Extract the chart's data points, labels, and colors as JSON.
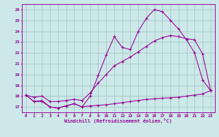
{
  "x": [
    0,
    1,
    2,
    3,
    4,
    5,
    6,
    7,
    8,
    9,
    10,
    11,
    12,
    13,
    14,
    15,
    16,
    17,
    18,
    19,
    20,
    21,
    22,
    23
  ],
  "line1": [
    18.1,
    17.5,
    17.6,
    17.0,
    16.9,
    17.1,
    17.3,
    17.0,
    18.0,
    19.9,
    21.8,
    23.5,
    22.5,
    22.3,
    24.0,
    25.2,
    26.0,
    25.8,
    25.0,
    24.2,
    23.2,
    22.0,
    19.5,
    18.5
  ],
  "line2": [
    18.1,
    17.9,
    18.0,
    17.5,
    17.5,
    17.6,
    17.7,
    17.6,
    18.3,
    19.2,
    20.0,
    20.8,
    21.2,
    21.6,
    22.1,
    22.6,
    23.1,
    23.4,
    23.6,
    23.5,
    23.3,
    23.2,
    21.9,
    18.5
  ],
  "line3": [
    18.1,
    17.5,
    17.5,
    17.0,
    16.9,
    17.1,
    17.3,
    17.0,
    17.1,
    17.15,
    17.2,
    17.3,
    17.4,
    17.5,
    17.6,
    17.7,
    17.75,
    17.8,
    17.85,
    17.9,
    18.0,
    18.1,
    18.2,
    18.5
  ],
  "color": "#990099",
  "bg_color": "#cce8e8",
  "grid_color": "#aacccc",
  "xlabel": "Windchill (Refroidissement éolien,°C)",
  "ylim": [
    16.5,
    26.5
  ],
  "xlim": [
    -0.5,
    23.5
  ],
  "yticks": [
    17,
    18,
    19,
    20,
    21,
    22,
    23,
    24,
    25,
    26
  ],
  "xticks": [
    0,
    1,
    2,
    3,
    4,
    5,
    6,
    7,
    8,
    9,
    10,
    11,
    12,
    13,
    14,
    15,
    16,
    17,
    18,
    19,
    20,
    21,
    22,
    23
  ]
}
